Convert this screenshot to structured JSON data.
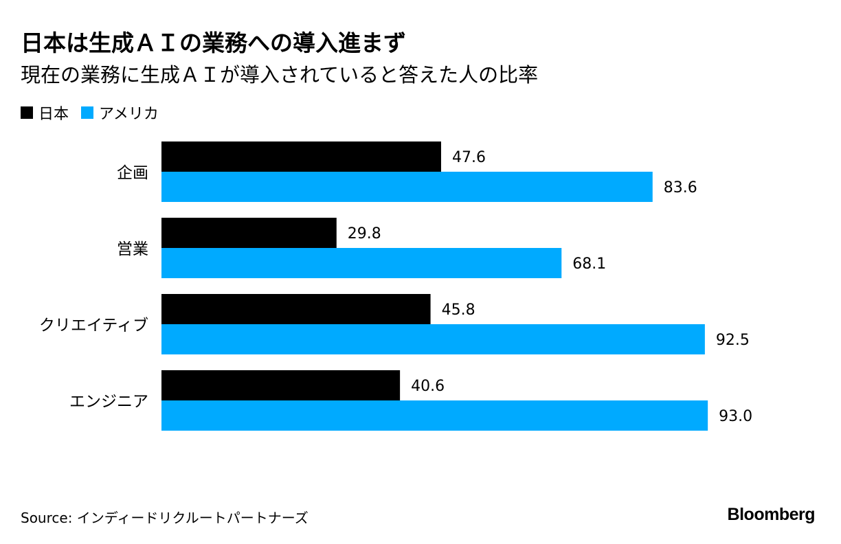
{
  "title": "日本は生成ＡＩの業務への導入進まず",
  "subtitle": "現在の業務に生成ＡＩが導入されていると答えた人の比率",
  "source": "Source: インディードリクルートパートナーズ",
  "brand": "Bloomberg",
  "colors": {
    "japan": "#000000",
    "usa": "#00aaff"
  },
  "chart_data": {
    "type": "bar",
    "orientation": "horizontal",
    "categories": [
      "企画",
      "営業",
      "クリエイティブ",
      "エンジニア"
    ],
    "series": [
      {
        "name": "日本",
        "values": [
          47.6,
          29.8,
          45.8,
          40.6
        ],
        "labels": [
          "47.6",
          "29.8",
          "45.8",
          "40.6"
        ]
      },
      {
        "name": "アメリカ",
        "values": [
          83.6,
          68.1,
          92.5,
          93.0
        ],
        "labels": [
          "83.6",
          "68.1",
          "92.5",
          "93.0"
        ]
      }
    ],
    "xlim": [
      0,
      100
    ],
    "legend": "top-left",
    "grid": false
  }
}
